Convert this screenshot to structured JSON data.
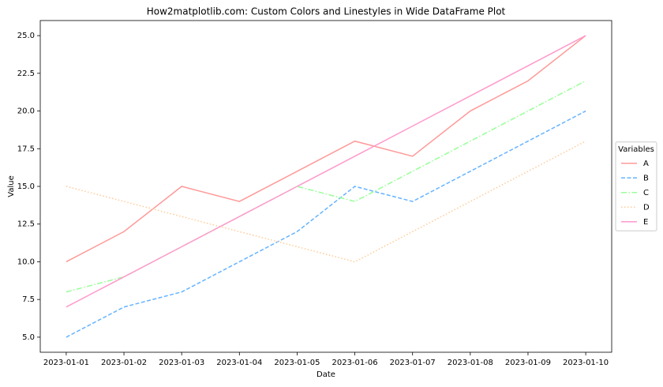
{
  "chart_data": {
    "type": "line",
    "title": "How2matplotlib.com: Custom Colors and Linestyles in Wide DataFrame Plot",
    "xlabel": "Date",
    "ylabel": "Value",
    "categories": [
      "2023-01-01",
      "2023-01-02",
      "2023-01-03",
      "2023-01-04",
      "2023-01-05",
      "2023-01-06",
      "2023-01-07",
      "2023-01-08",
      "2023-01-09",
      "2023-01-10"
    ],
    "series": [
      {
        "name": "A",
        "color": "#ff9999",
        "linestyle": "solid",
        "values": [
          10,
          12,
          15,
          14,
          16,
          18,
          17,
          20,
          22,
          25
        ]
      },
      {
        "name": "B",
        "color": "#66b3ff",
        "linestyle": "dashed",
        "values": [
          5,
          7,
          8,
          10,
          12,
          15,
          14,
          16,
          18,
          20
        ]
      },
      {
        "name": "C",
        "color": "#99ff99",
        "linestyle": "dashdot",
        "values": [
          8,
          9,
          11,
          13,
          15,
          14,
          16,
          18,
          20,
          22
        ]
      },
      {
        "name": "D",
        "color": "#ffcc99",
        "linestyle": "dotted",
        "values": [
          15,
          14,
          13,
          12,
          11,
          10,
          12,
          14,
          16,
          18
        ]
      },
      {
        "name": "E",
        "color": "#ff99cc",
        "linestyle": "solid",
        "values": [
          7,
          9,
          11,
          13,
          15,
          17,
          19,
          21,
          23,
          25
        ]
      }
    ],
    "legend_title": "Variables",
    "legend": "center right",
    "ylim": [
      4,
      26
    ],
    "yticks": [
      {
        "value": 5,
        "label": "5.0"
      },
      7.5,
      {
        "value": 10,
        "label": "10.0"
      },
      12.5,
      {
        "value": 15,
        "label": "15.0"
      },
      17.5,
      {
        "value": 20,
        "label": "20.0"
      },
      22.5,
      {
        "value": 25,
        "label": "25.0"
      }
    ]
  }
}
